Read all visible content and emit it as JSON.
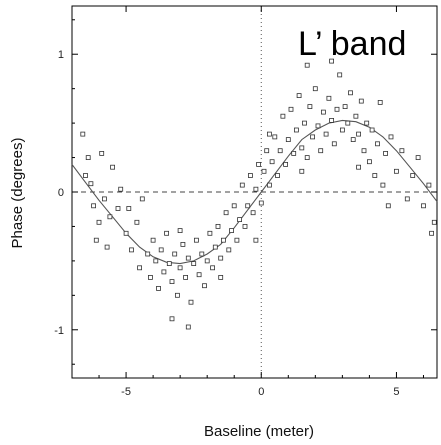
{
  "chart_data": {
    "type": "scatter",
    "title": "",
    "annotation": "L’ band",
    "xlabel": "Baseline (meter)",
    "ylabel": "Phase (degrees)",
    "xlim": [
      -7,
      6.5
    ],
    "ylim": [
      -1.35,
      1.35
    ],
    "x_ticks": [
      -5,
      0,
      5
    ],
    "y_ticks": [
      -1,
      0,
      1
    ],
    "x_tick_labels": [
      "-5",
      "0",
      "5"
    ],
    "y_tick_labels": [
      "-1",
      "0",
      "1"
    ],
    "reference_lines": [
      {
        "orientation": "horizontal",
        "value": 0,
        "style": "dashed"
      },
      {
        "orientation": "vertical",
        "value": 0,
        "style": "dotted"
      }
    ],
    "marker": "open-square",
    "colors": {
      "markers": "#333333",
      "fit_line": "#555555",
      "axes": "#000000"
    },
    "fit_curve": {
      "model": "sine",
      "amplitude": 0.52,
      "period": 12.2,
      "x": [
        -7,
        -6.5,
        -6,
        -5.5,
        -5,
        -4.5,
        -4,
        -3.5,
        -3,
        -2.5,
        -2,
        -1.5,
        -1,
        -0.5,
        0,
        0.5,
        1,
        1.5,
        2,
        2.5,
        3,
        3.5,
        4,
        4.5,
        5,
        5.5,
        6,
        6.5
      ],
      "y": [
        0.2,
        0.07,
        -0.06,
        -0.18,
        -0.3,
        -0.4,
        -0.47,
        -0.51,
        -0.52,
        -0.5,
        -0.45,
        -0.38,
        -0.26,
        -0.13,
        0.0,
        0.13,
        0.26,
        0.38,
        0.45,
        0.5,
        0.52,
        0.51,
        0.47,
        0.4,
        0.3,
        0.18,
        0.06,
        -0.07
      ]
    },
    "series": [
      {
        "points": [
          [
            -6.6,
            0.42
          ],
          [
            -6.4,
            0.25
          ],
          [
            -6.3,
            0.06
          ],
          [
            -6.2,
            -0.1
          ],
          [
            -6.5,
            0.12
          ],
          [
            -6.0,
            -0.22
          ],
          [
            -5.9,
            0.28
          ],
          [
            -5.8,
            -0.05
          ],
          [
            -5.6,
            -0.18
          ],
          [
            -5.5,
            0.18
          ],
          [
            -5.3,
            -0.12
          ],
          [
            -5.2,
            0.02
          ],
          [
            -5.0,
            -0.3
          ],
          [
            -4.9,
            -0.12
          ],
          [
            -4.8,
            -0.42
          ],
          [
            -4.6,
            -0.22
          ],
          [
            -4.5,
            -0.55
          ],
          [
            -4.4,
            -0.05
          ],
          [
            -4.2,
            -0.45
          ],
          [
            -4.1,
            -0.62
          ],
          [
            -4.0,
            -0.35
          ],
          [
            -3.9,
            -0.5
          ],
          [
            -3.8,
            -0.7
          ],
          [
            -3.7,
            -0.42
          ],
          [
            -3.6,
            -0.58
          ],
          [
            -3.5,
            -0.3
          ],
          [
            -3.4,
            -0.52
          ],
          [
            -3.3,
            -0.65
          ],
          [
            -3.2,
            -0.45
          ],
          [
            -3.1,
            -0.75
          ],
          [
            -3.0,
            -0.55
          ],
          [
            -2.9,
            -0.38
          ],
          [
            -2.8,
            -0.62
          ],
          [
            -2.7,
            -0.48
          ],
          [
            -2.6,
            -0.8
          ],
          [
            -2.5,
            -0.52
          ],
          [
            -2.4,
            -0.35
          ],
          [
            -2.3,
            -0.6
          ],
          [
            -2.2,
            -0.45
          ],
          [
            -2.1,
            -0.68
          ],
          [
            -2.0,
            -0.5
          ],
          [
            -1.9,
            -0.3
          ],
          [
            -1.8,
            -0.55
          ],
          [
            -1.7,
            -0.4
          ],
          [
            -1.6,
            -0.25
          ],
          [
            -1.5,
            -0.48
          ],
          [
            -1.4,
            -0.35
          ],
          [
            -1.3,
            -0.15
          ],
          [
            -1.2,
            -0.42
          ],
          [
            -1.1,
            -0.28
          ],
          [
            -1.0,
            -0.1
          ],
          [
            -0.9,
            -0.35
          ],
          [
            -0.8,
            -0.2
          ],
          [
            -0.7,
            0.05
          ],
          [
            -0.6,
            -0.25
          ],
          [
            -0.5,
            -0.1
          ],
          [
            -0.4,
            0.12
          ],
          [
            -0.3,
            -0.15
          ],
          [
            -0.2,
            0.02
          ],
          [
            -0.1,
            0.2
          ],
          [
            0.0,
            -0.08
          ],
          [
            0.1,
            0.15
          ],
          [
            0.2,
            0.3
          ],
          [
            0.3,
            0.05
          ],
          [
            0.4,
            0.22
          ],
          [
            0.5,
            0.4
          ],
          [
            0.6,
            0.12
          ],
          [
            0.7,
            0.3
          ],
          [
            0.8,
            0.55
          ],
          [
            0.9,
            0.2
          ],
          [
            1.0,
            0.38
          ],
          [
            1.1,
            0.6
          ],
          [
            1.2,
            0.28
          ],
          [
            1.3,
            0.45
          ],
          [
            1.4,
            0.7
          ],
          [
            1.5,
            0.32
          ],
          [
            1.6,
            0.5
          ],
          [
            1.7,
            0.25
          ],
          [
            1.8,
            0.62
          ],
          [
            1.9,
            0.4
          ],
          [
            2.0,
            0.75
          ],
          [
            2.1,
            0.48
          ],
          [
            2.2,
            0.3
          ],
          [
            2.3,
            0.58
          ],
          [
            2.4,
            0.42
          ],
          [
            2.5,
            0.68
          ],
          [
            2.6,
            0.52
          ],
          [
            2.7,
            0.35
          ],
          [
            2.8,
            0.6
          ],
          [
            2.9,
            0.85
          ],
          [
            3.0,
            0.45
          ],
          [
            3.1,
            0.62
          ],
          [
            3.2,
            0.5
          ],
          [
            3.3,
            0.72
          ],
          [
            3.4,
            0.38
          ],
          [
            3.5,
            0.55
          ],
          [
            3.6,
            0.42
          ],
          [
            3.7,
            0.66
          ],
          [
            3.8,
            0.3
          ],
          [
            3.9,
            0.5
          ],
          [
            4.0,
            0.22
          ],
          [
            4.1,
            0.45
          ],
          [
            4.2,
            0.12
          ],
          [
            4.3,
            0.35
          ],
          [
            4.5,
            0.05
          ],
          [
            4.6,
            0.28
          ],
          [
            4.8,
            0.4
          ],
          [
            5.0,
            0.15
          ],
          [
            5.2,
            0.3
          ],
          [
            5.4,
            -0.05
          ],
          [
            5.6,
            0.12
          ],
          [
            5.8,
            0.25
          ],
          [
            6.0,
            -0.1
          ],
          [
            6.2,
            0.05
          ],
          [
            6.4,
            -0.22
          ],
          [
            -6.1,
            -0.35
          ],
          [
            -3.3,
            -0.92
          ],
          [
            -2.7,
            -0.98
          ],
          [
            -1.5,
            -0.62
          ],
          [
            1.7,
            0.92
          ],
          [
            2.6,
            0.95
          ],
          [
            4.4,
            0.65
          ],
          [
            6.3,
            -0.3
          ],
          [
            -5.7,
            -0.4
          ],
          [
            -3.0,
            -0.28
          ],
          [
            -0.2,
            -0.35
          ],
          [
            0.3,
            0.42
          ],
          [
            1.5,
            0.15
          ],
          [
            3.6,
            0.18
          ],
          [
            4.7,
            -0.1
          ]
        ]
      }
    ]
  }
}
